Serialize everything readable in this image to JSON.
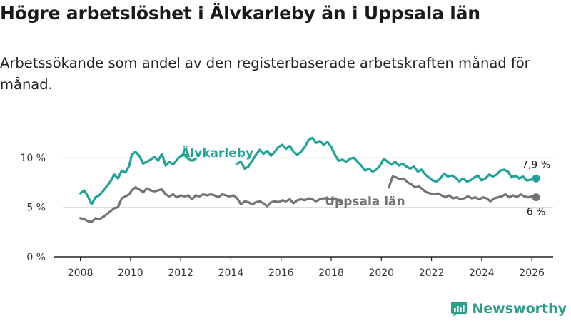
{
  "title": "Högre arbetslöshet i Älvkarleby än i Uppsala län",
  "subtitle": "Arbetssökande som andel av den registerbaserade arbetskraften månad för månad.",
  "brand": "Newsworthy",
  "colors": {
    "alvkarleby": "#1fa396",
    "uppsala": "#737373",
    "axis": "#222222",
    "grid": "#dddddd"
  },
  "chart_data": {
    "type": "line",
    "xlabel": "",
    "ylabel": "",
    "xlim": [
      2007.3,
      2026.85
    ],
    "ylim": [
      0,
      12.6
    ],
    "x_ticks": [
      2008,
      2010,
      2012,
      2014,
      2016,
      2018,
      2020,
      2022,
      2024,
      2026
    ],
    "x_tick_labels": [
      "2008",
      "2010",
      "2012",
      "2014",
      "2016",
      "2018",
      "2020",
      "2022",
      "2024",
      "2026"
    ],
    "y_ticks": [
      0,
      5,
      10
    ],
    "y_tick_labels": [
      "0 %",
      "5 %",
      "10 %"
    ],
    "series": [
      {
        "name": "Älvkarleby",
        "end_label": "7,9 %",
        "points": [
          [
            2008.0,
            6.4
          ],
          [
            2008.15,
            6.7
          ],
          [
            2008.3,
            6.1
          ],
          [
            2008.45,
            5.3
          ],
          [
            2008.6,
            6.0
          ],
          [
            2008.75,
            6.2
          ],
          [
            2008.9,
            6.6
          ],
          [
            2009.05,
            7.1
          ],
          [
            2009.2,
            7.6
          ],
          [
            2009.35,
            8.3
          ],
          [
            2009.5,
            7.9
          ],
          [
            2009.65,
            8.7
          ],
          [
            2009.8,
            8.5
          ],
          [
            2009.95,
            9.2
          ],
          [
            2010.05,
            10.3
          ],
          [
            2010.2,
            10.6
          ],
          [
            2010.35,
            10.2
          ],
          [
            2010.5,
            9.4
          ],
          [
            2010.65,
            9.6
          ],
          [
            2010.8,
            9.8
          ],
          [
            2010.95,
            10.1
          ],
          [
            2011.1,
            9.7
          ],
          [
            2011.25,
            10.4
          ],
          [
            2011.4,
            9.2
          ],
          [
            2011.55,
            9.6
          ],
          [
            2011.7,
            9.3
          ],
          [
            2011.85,
            9.8
          ],
          [
            2012.0,
            10.2
          ],
          [
            2012.15,
            10.3
          ],
          [
            2012.3,
            9.9
          ],
          [
            2012.45,
            9.7
          ],
          [
            2012.6,
            9.9
          ],
          [
            2014.25,
            9.4
          ],
          [
            2014.4,
            9.6
          ],
          [
            2014.55,
            8.9
          ],
          [
            2014.7,
            9.1
          ],
          [
            2014.85,
            9.7
          ],
          [
            2015.0,
            10.3
          ],
          [
            2015.15,
            10.8
          ],
          [
            2015.3,
            10.4
          ],
          [
            2015.45,
            10.7
          ],
          [
            2015.6,
            10.2
          ],
          [
            2015.75,
            10.6
          ],
          [
            2015.9,
            11.1
          ],
          [
            2016.05,
            11.3
          ],
          [
            2016.2,
            10.9
          ],
          [
            2016.35,
            11.2
          ],
          [
            2016.5,
            10.6
          ],
          [
            2016.65,
            10.3
          ],
          [
            2016.8,
            10.6
          ],
          [
            2016.95,
            11.1
          ],
          [
            2017.1,
            11.8
          ],
          [
            2017.25,
            12.0
          ],
          [
            2017.4,
            11.5
          ],
          [
            2017.55,
            11.7
          ],
          [
            2017.7,
            11.3
          ],
          [
            2017.85,
            11.6
          ],
          [
            2018.0,
            11.1
          ],
          [
            2018.15,
            10.3
          ],
          [
            2018.3,
            9.7
          ],
          [
            2018.45,
            9.8
          ],
          [
            2018.6,
            9.6
          ],
          [
            2018.75,
            9.9
          ],
          [
            2018.9,
            10.0
          ],
          [
            2019.05,
            9.6
          ],
          [
            2019.2,
            9.2
          ],
          [
            2019.35,
            8.7
          ],
          [
            2019.5,
            8.9
          ],
          [
            2019.65,
            8.6
          ],
          [
            2019.8,
            8.8
          ],
          [
            2019.95,
            9.2
          ],
          [
            2020.1,
            9.9
          ],
          [
            2020.25,
            9.6
          ],
          [
            2020.4,
            9.3
          ],
          [
            2020.55,
            9.6
          ],
          [
            2020.7,
            9.2
          ],
          [
            2020.85,
            9.4
          ],
          [
            2021.0,
            9.1
          ],
          [
            2021.15,
            8.9
          ],
          [
            2021.3,
            9.1
          ],
          [
            2021.45,
            8.6
          ],
          [
            2021.6,
            8.8
          ],
          [
            2021.75,
            8.3
          ],
          [
            2021.9,
            8.0
          ],
          [
            2022.05,
            7.7
          ],
          [
            2022.2,
            7.6
          ],
          [
            2022.35,
            7.9
          ],
          [
            2022.5,
            8.4
          ],
          [
            2022.65,
            8.1
          ],
          [
            2022.8,
            8.2
          ],
          [
            2022.95,
            8.0
          ],
          [
            2023.1,
            7.6
          ],
          [
            2023.25,
            7.9
          ],
          [
            2023.4,
            7.6
          ],
          [
            2023.55,
            7.7
          ],
          [
            2023.7,
            8.0
          ],
          [
            2023.85,
            8.2
          ],
          [
            2024.0,
            7.7
          ],
          [
            2024.15,
            7.9
          ],
          [
            2024.3,
            8.3
          ],
          [
            2024.45,
            8.1
          ],
          [
            2024.6,
            8.3
          ],
          [
            2024.75,
            8.7
          ],
          [
            2024.9,
            8.8
          ],
          [
            2025.05,
            8.6
          ],
          [
            2025.2,
            8.0
          ],
          [
            2025.35,
            8.2
          ],
          [
            2025.5,
            7.9
          ],
          [
            2025.65,
            8.1
          ],
          [
            2025.8,
            7.7
          ],
          [
            2026.0,
            7.8
          ],
          [
            2026.17,
            7.9
          ]
        ]
      },
      {
        "name": "Uppsala län",
        "end_label": "6 %",
        "points": [
          [
            2008.0,
            3.9
          ],
          [
            2008.15,
            3.8
          ],
          [
            2008.3,
            3.6
          ],
          [
            2008.45,
            3.5
          ],
          [
            2008.6,
            3.9
          ],
          [
            2008.75,
            3.8
          ],
          [
            2008.9,
            4.0
          ],
          [
            2009.05,
            4.3
          ],
          [
            2009.2,
            4.6
          ],
          [
            2009.35,
            4.9
          ],
          [
            2009.5,
            5.0
          ],
          [
            2009.65,
            5.9
          ],
          [
            2009.8,
            6.1
          ],
          [
            2009.95,
            6.3
          ],
          [
            2010.05,
            6.7
          ],
          [
            2010.2,
            7.0
          ],
          [
            2010.35,
            6.8
          ],
          [
            2010.5,
            6.5
          ],
          [
            2010.65,
            6.9
          ],
          [
            2010.8,
            6.7
          ],
          [
            2010.95,
            6.6
          ],
          [
            2011.1,
            6.7
          ],
          [
            2011.25,
            6.8
          ],
          [
            2011.4,
            6.3
          ],
          [
            2011.55,
            6.1
          ],
          [
            2011.7,
            6.3
          ],
          [
            2011.85,
            6.0
          ],
          [
            2012.0,
            6.2
          ],
          [
            2012.15,
            6.1
          ],
          [
            2012.3,
            6.2
          ],
          [
            2012.45,
            5.8
          ],
          [
            2012.6,
            6.2
          ],
          [
            2012.75,
            6.1
          ],
          [
            2012.9,
            6.3
          ],
          [
            2013.05,
            6.2
          ],
          [
            2013.2,
            6.3
          ],
          [
            2013.35,
            6.2
          ],
          [
            2013.5,
            6.0
          ],
          [
            2013.65,
            6.3
          ],
          [
            2013.8,
            6.2
          ],
          [
            2013.95,
            6.1
          ],
          [
            2014.1,
            6.2
          ],
          [
            2014.25,
            5.9
          ],
          [
            2014.4,
            5.3
          ],
          [
            2014.55,
            5.6
          ],
          [
            2014.7,
            5.5
          ],
          [
            2014.85,
            5.3
          ],
          [
            2015.0,
            5.5
          ],
          [
            2015.15,
            5.6
          ],
          [
            2015.3,
            5.4
          ],
          [
            2015.45,
            5.1
          ],
          [
            2015.6,
            5.5
          ],
          [
            2015.75,
            5.6
          ],
          [
            2015.9,
            5.5
          ],
          [
            2016.05,
            5.7
          ],
          [
            2016.2,
            5.6
          ],
          [
            2016.35,
            5.8
          ],
          [
            2016.5,
            5.4
          ],
          [
            2016.65,
            5.7
          ],
          [
            2016.8,
            5.8
          ],
          [
            2016.95,
            5.7
          ],
          [
            2017.1,
            5.9
          ],
          [
            2017.25,
            5.8
          ],
          [
            2017.4,
            5.6
          ],
          [
            2017.55,
            5.8
          ],
          [
            2017.7,
            5.9
          ],
          [
            2017.85,
            5.9
          ],
          [
            2018.0,
            5.8
          ],
          [
            2018.15,
            5.9
          ],
          [
            2018.3,
            5.7
          ],
          [
            2018.45,
            5.4
          ],
          [
            2020.3,
            7.0
          ],
          [
            2020.45,
            8.1
          ],
          [
            2020.6,
            8.0
          ],
          [
            2020.75,
            7.8
          ],
          [
            2020.9,
            7.9
          ],
          [
            2021.05,
            7.5
          ],
          [
            2021.2,
            7.3
          ],
          [
            2021.35,
            7.0
          ],
          [
            2021.5,
            7.1
          ],
          [
            2021.65,
            6.8
          ],
          [
            2021.8,
            6.5
          ],
          [
            2021.95,
            6.4
          ],
          [
            2022.1,
            6.3
          ],
          [
            2022.25,
            6.4
          ],
          [
            2022.4,
            6.2
          ],
          [
            2022.55,
            6.0
          ],
          [
            2022.7,
            6.2
          ],
          [
            2022.85,
            5.9
          ],
          [
            2023.0,
            6.0
          ],
          [
            2023.15,
            5.8
          ],
          [
            2023.3,
            5.9
          ],
          [
            2023.45,
            6.1
          ],
          [
            2023.6,
            5.9
          ],
          [
            2023.75,
            6.0
          ],
          [
            2023.9,
            5.8
          ],
          [
            2024.05,
            6.0
          ],
          [
            2024.2,
            5.9
          ],
          [
            2024.35,
            5.6
          ],
          [
            2024.5,
            5.9
          ],
          [
            2024.65,
            6.0
          ],
          [
            2024.8,
            6.1
          ],
          [
            2024.95,
            6.3
          ],
          [
            2025.1,
            6.0
          ],
          [
            2025.25,
            6.2
          ],
          [
            2025.4,
            6.0
          ],
          [
            2025.55,
            6.3
          ],
          [
            2025.7,
            6.1
          ],
          [
            2025.85,
            6.0
          ],
          [
            2026.0,
            6.1
          ],
          [
            2026.17,
            6.0
          ]
        ]
      }
    ]
  }
}
